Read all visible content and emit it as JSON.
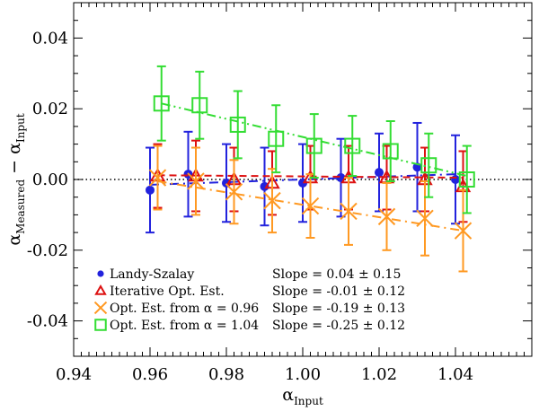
{
  "chart_data": {
    "type": "scatter",
    "xlabel": {
      "base": "α",
      "sub": "Input"
    },
    "ylabel": {
      "base1": "α",
      "sub1": "Measured",
      "mid": " − ",
      "base2": "α",
      "sub2": "Input"
    },
    "xlim": [
      0.94,
      1.06
    ],
    "ylim": [
      -0.05,
      0.05
    ],
    "xticks": [
      0.94,
      0.96,
      0.98,
      1.0,
      1.02,
      1.04
    ],
    "xtick_labels": [
      "0.94",
      "0.96",
      "0.98",
      "1.00",
      "1.02",
      "1.04"
    ],
    "yticks": [
      -0.04,
      -0.02,
      0.0,
      0.02,
      0.04
    ],
    "ytick_labels": [
      "-0.04",
      "-0.02",
      "0.00",
      "0.02",
      "0.04"
    ],
    "reference_line": {
      "y": 0.0,
      "style": "dotted",
      "color": "#000000"
    },
    "series": [
      {
        "name": "Landy-Szalay",
        "slope_text": "Slope =  0.04 ±  0.15",
        "marker": "filled-circle",
        "color": "#2222dd",
        "fit_style": "dashdot",
        "x": [
          0.96,
          0.97,
          0.98,
          0.99,
          1.0,
          1.01,
          1.02,
          1.03,
          1.04
        ],
        "y": [
          -0.003,
          0.0015,
          -0.001,
          -0.002,
          -0.001,
          0.0005,
          0.002,
          0.0035,
          0.0
        ],
        "err": [
          0.012,
          0.012,
          0.011,
          0.011,
          0.011,
          0.011,
          0.011,
          0.0125,
          0.0125
        ],
        "fit": {
          "x": [
            0.96,
            1.04
          ],
          "y": [
            -0.0015,
            0.0015
          ]
        }
      },
      {
        "name": "Iterative Opt. Est.",
        "slope_text": "Slope = -0.01 ±  0.12",
        "marker": "open-triangle",
        "color": "#dd1111",
        "fit_style": "dashed",
        "x": [
          0.962,
          0.972,
          0.982,
          0.992,
          1.002,
          1.012,
          1.022,
          1.032,
          1.042
        ],
        "y": [
          0.001,
          0.001,
          0.0,
          -0.001,
          0.0005,
          0.0005,
          0.0005,
          0.0,
          -0.002
        ],
        "err": [
          0.009,
          0.01,
          0.009,
          0.009,
          0.009,
          0.009,
          0.009,
          0.009,
          0.01
        ],
        "fit": {
          "x": [
            0.962,
            1.042
          ],
          "y": [
            0.0012,
            0.0005
          ]
        }
      },
      {
        "name": "Opt. Est. from α = 0.96",
        "slope_text": "Slope = -0.19 ±  0.13",
        "marker": "cross",
        "color": "#ff9922",
        "fit_style": "dashdot",
        "x": [
          0.962,
          0.972,
          0.982,
          0.992,
          1.002,
          1.012,
          1.022,
          1.032,
          1.042
        ],
        "y": [
          0.0005,
          -0.0005,
          -0.0035,
          -0.006,
          -0.0075,
          -0.009,
          -0.0105,
          -0.011,
          -0.0145
        ],
        "err": [
          0.009,
          0.0095,
          0.009,
          0.009,
          0.009,
          0.0095,
          0.0095,
          0.0105,
          0.0115
        ],
        "fit": {
          "x": [
            0.962,
            1.042
          ],
          "y": [
            -0.0005,
            -0.0145
          ]
        }
      },
      {
        "name": "Opt. Est. from α = 1.04",
        "slope_text": "Slope = -0.25 ±  0.12",
        "marker": "open-square",
        "color": "#33dd33",
        "fit_style": "dashdotdot",
        "x": [
          0.963,
          0.973,
          0.983,
          0.993,
          1.003,
          1.013,
          1.023,
          1.033,
          1.043
        ],
        "y": [
          0.0215,
          0.021,
          0.0155,
          0.0115,
          0.0095,
          0.0095,
          0.008,
          0.004,
          0.0
        ],
        "err": [
          0.0105,
          0.0095,
          0.0095,
          0.0095,
          0.009,
          0.0085,
          0.0085,
          0.009,
          0.0095
        ],
        "fit": {
          "x": [
            0.963,
            1.043
          ],
          "y": [
            0.0215,
            0.001
          ]
        }
      }
    ],
    "legend": {
      "position": "bottom-left"
    }
  }
}
